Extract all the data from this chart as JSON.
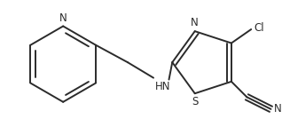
{
  "background_color": "#ffffff",
  "bond_color": "#2b2b2b",
  "label_color": "#2b2b2b",
  "line_width": 1.4,
  "font_size": 8.5,
  "figsize": [
    3.18,
    1.52
  ],
  "dpi": 100,
  "xlim": [
    0,
    318
  ],
  "ylim": [
    0,
    152
  ]
}
